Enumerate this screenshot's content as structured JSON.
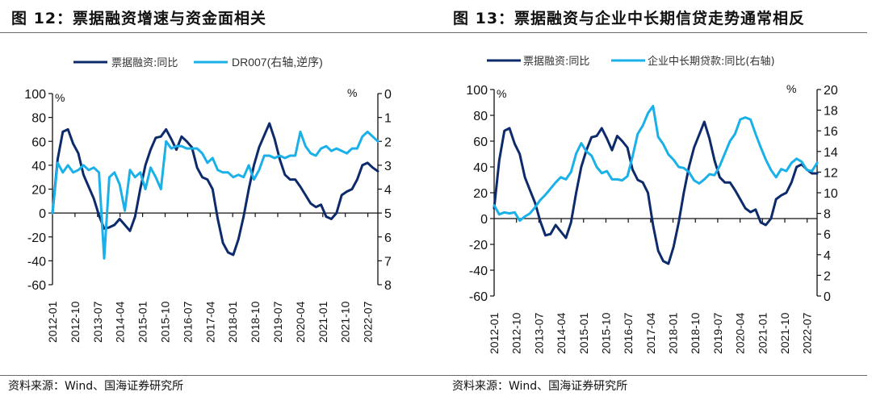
{
  "charts": [
    {
      "fig_title": "图 12：票据融资增速与资金面相关",
      "source": "资料来源：Wind、国海证券研究所",
      "legend": [
        "票据融资:同比",
        "DR007(右轴,逆序)"
      ],
      "left_unit": "%",
      "right_unit": "%",
      "left_ticks": [
        "100",
        "80",
        "60",
        "40",
        "20",
        "0",
        "-20",
        "-40",
        "-60"
      ],
      "right_ticks": [
        "0",
        "1",
        "2",
        "3",
        "4",
        "5",
        "6",
        "7",
        "8"
      ],
      "x_ticks": [
        "2012-01",
        "2012-10",
        "2013-07",
        "2014-04",
        "2015-01",
        "2015-10",
        "2016-07",
        "2017-04",
        "2018-01",
        "2018-10",
        "2019-07",
        "2020-04",
        "2021-01",
        "2021-10",
        "2022-07"
      ]
    },
    {
      "fig_title": "图 13：票据融资与企业中长期信贷走势通常相反",
      "source": "资料来源：Wind、国海证券研究所",
      "legend": [
        "票据融资:同比",
        "企业中长期贷款:同比(右轴)"
      ],
      "left_unit": "%",
      "right_unit": "%",
      "left_ticks": [
        "100",
        "80",
        "60",
        "40",
        "20",
        "0",
        "-20",
        "-40",
        "-60"
      ],
      "right_ticks": [
        "20",
        "18",
        "16",
        "14",
        "12",
        "10",
        "8",
        "6",
        "4",
        "2",
        "0"
      ],
      "x_ticks": [
        "2012-01",
        "2012-10",
        "2013-07",
        "2014-04",
        "2015-01",
        "2015-10",
        "2016-07",
        "2017-04",
        "2018-01",
        "2018-10",
        "2019-07",
        "2020-04",
        "2021-01",
        "2021-10",
        "2022-07"
      ]
    }
  ],
  "chart_data": [
    {
      "type": "line",
      "title": "图 12：票据融资增速与资金面相关",
      "xlabel": "",
      "ylabel": "%",
      "y2label": "%",
      "ylim": [
        -60,
        100
      ],
      "y2lim": [
        8,
        0
      ],
      "y2_inverted": true,
      "grid": false,
      "legend_position": "top-center",
      "x_start": "2012-01",
      "x_step_months": 3,
      "colors": {
        "bill_financing": "#0d2a6b",
        "dr007": "#1ab0e8"
      },
      "series": [
        {
          "name": "票据融资:同比",
          "axis": "left",
          "values": [
            0,
            45,
            68,
            70,
            58,
            50,
            32,
            22,
            12,
            -2,
            -13,
            -12,
            -10,
            -5,
            -10,
            -15,
            -3,
            20,
            40,
            53,
            63,
            64,
            70,
            62,
            53,
            64,
            60,
            55,
            38,
            30,
            28,
            20,
            -5,
            -25,
            -33,
            -35,
            -22,
            -3,
            20,
            40,
            55,
            65,
            75,
            62,
            45,
            32,
            28,
            28,
            22,
            15,
            8,
            5,
            7,
            -3,
            -5,
            0,
            15,
            18,
            20,
            28,
            40,
            42,
            38,
            35
          ]
        },
        {
          "name": "DR007(右轴,逆序)",
          "axis": "right",
          "values": [
            5.0,
            2.9,
            3.3,
            3.0,
            3.3,
            3.2,
            3.0,
            3.2,
            3.1,
            3.3,
            6.9,
            3.5,
            3.3,
            3.8,
            4.9,
            3.2,
            3.5,
            3.3,
            4.0,
            3.1,
            3.5,
            4.0,
            2.0,
            2.3,
            2.2,
            2.2,
            2.3,
            2.3,
            2.3,
            2.5,
            2.9,
            2.7,
            3.2,
            3.3,
            3.3,
            3.5,
            3.4,
            3.5,
            3.0,
            3.6,
            3.2,
            2.6,
            2.6,
            2.7,
            2.6,
            2.7,
            2.6,
            2.6,
            1.6,
            2.2,
            2.5,
            2.6,
            2.3,
            2.2,
            2.4,
            2.3,
            2.4,
            2.5,
            2.3,
            2.3,
            1.8,
            1.6,
            1.8,
            2.0
          ]
        }
      ],
      "x_tick_labels": [
        "2012-01",
        "2012-10",
        "2013-07",
        "2014-04",
        "2015-01",
        "2015-10",
        "2016-07",
        "2017-04",
        "2018-01",
        "2018-10",
        "2019-07",
        "2020-04",
        "2021-01",
        "2021-10",
        "2022-07"
      ],
      "y_tick_labels": [
        "100",
        "80",
        "60",
        "40",
        "20",
        "0",
        "-20",
        "-40",
        "-60"
      ],
      "y2_tick_labels": [
        "0",
        "1",
        "2",
        "3",
        "4",
        "5",
        "6",
        "7",
        "8"
      ]
    },
    {
      "type": "line",
      "title": "图 13：票据融资与企业中长期信贷走势通常相反",
      "xlabel": "",
      "ylabel": "%",
      "y2label": "%",
      "ylim": [
        -60,
        100
      ],
      "y2lim": [
        0,
        20
      ],
      "grid": false,
      "legend_position": "top-center",
      "x_start": "2012-01",
      "x_step_months": 3,
      "colors": {
        "bill_financing": "#0d2a6b",
        "mlt_loans": "#1ab0e8"
      },
      "series": [
        {
          "name": "票据融资:同比",
          "axis": "left",
          "values": [
            8,
            45,
            68,
            70,
            58,
            50,
            32,
            22,
            12,
            -2,
            -13,
            -12,
            -5,
            -10,
            -15,
            -3,
            20,
            40,
            53,
            63,
            64,
            70,
            62,
            53,
            64,
            60,
            55,
            38,
            30,
            28,
            20,
            -5,
            -25,
            -33,
            -35,
            -22,
            -3,
            20,
            40,
            55,
            65,
            75,
            62,
            45,
            32,
            28,
            28,
            22,
            15,
            8,
            5,
            7,
            -3,
            -5,
            0,
            15,
            18,
            20,
            28,
            40,
            42,
            38,
            35,
            35
          ]
        },
        {
          "name": "企业中长期贷款:同比(右轴)",
          "axis": "right",
          "values": [
            8.8,
            7.9,
            8.1,
            8.0,
            8.1,
            7.3,
            7.7,
            8.0,
            8.6,
            9.3,
            9.8,
            10.4,
            11.0,
            11.5,
            11.3,
            12.0,
            13.8,
            14.8,
            14.0,
            13.6,
            12.5,
            11.9,
            12.1,
            11.3,
            11.3,
            11.2,
            11.6,
            13.5,
            15.7,
            16.5,
            17.7,
            18.4,
            15.4,
            14.7,
            13.7,
            13.2,
            12.5,
            12.4,
            12.0,
            11.2,
            10.9,
            11.3,
            11.8,
            11.7,
            12.6,
            13.8,
            15.0,
            15.7,
            17.1,
            17.3,
            17.1,
            15.7,
            14.4,
            13.2,
            12.2,
            11.5,
            12.3,
            12.1,
            12.9,
            13.3,
            13.0,
            12.2,
            12.1,
            12.9
          ]
        }
      ],
      "x_tick_labels": [
        "2012-01",
        "2012-10",
        "2013-07",
        "2014-04",
        "2015-01",
        "2015-10",
        "2016-07",
        "2017-04",
        "2018-01",
        "2018-10",
        "2019-07",
        "2020-04",
        "2021-01",
        "2021-10",
        "2022-07"
      ],
      "y_tick_labels": [
        "100",
        "80",
        "60",
        "40",
        "20",
        "0",
        "-20",
        "-40",
        "-60"
      ],
      "y2_tick_labels": [
        "20",
        "18",
        "16",
        "14",
        "12",
        "10",
        "8",
        "6",
        "4",
        "2",
        "0"
      ]
    }
  ]
}
